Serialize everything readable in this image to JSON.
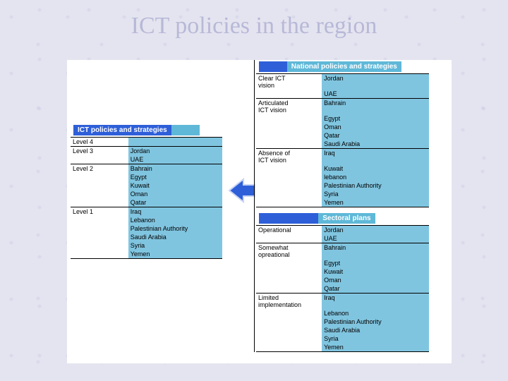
{
  "title": "ICT policies in the region",
  "colors": {
    "page_bg": "#e4e4f0",
    "content_bg": "#ffffff",
    "header_blue": "#2e5fd9",
    "header_cyan": "#5fb8d8",
    "col2_bg": "#80c5e0",
    "title_color": "#b8b8d8",
    "arrow_fill": "#2e5fd9",
    "arrow_stroke": "#8aa0e8"
  },
  "left": {
    "header": "ICT policies and strategies",
    "rows": [
      {
        "level": "Level 4",
        "items": [],
        "sep": true
      },
      {
        "level": "Level 3",
        "items": [
          "Jordan",
          "UAE"
        ],
        "sep": true
      },
      {
        "level": "Level 2",
        "items": [
          "Bahrain",
          "Egypt",
          "Kuwait",
          "Oman",
          "Qatar"
        ],
        "sep": true
      },
      {
        "level": "Level 1",
        "items": [
          "Iraq",
          "Lebanon",
          "Palestinian Authority",
          "Saudi Arabia",
          "Syria",
          "Yemen"
        ],
        "sep": true
      }
    ]
  },
  "right_top": {
    "header": "National policies and strategies",
    "rows": [
      {
        "level": "Clear ICT vision",
        "items": [
          "Jordan",
          "UAE"
        ],
        "sep": true
      },
      {
        "level": "Articulated ICT vision",
        "items": [
          "Bahrain",
          "Egypt",
          "Oman",
          "Qatar",
          "Saudi Arabia"
        ],
        "sep": true
      },
      {
        "level": "Absence of ICT vision",
        "items": [
          "Iraq",
          "Kuwait",
          "lebanon",
          "Palestinian Authority",
          "Syria",
          "Yemen"
        ],
        "sep": true
      }
    ]
  },
  "right_bottom": {
    "header": "Sectoral plans",
    "rows": [
      {
        "level": "Operational",
        "items": [
          "Jordan",
          "UAE"
        ],
        "sep": true
      },
      {
        "level": "Somewhat opreational",
        "items": [
          "Bahrain",
          "Egypt",
          "Kuwait",
          "Oman",
          "Qatar"
        ],
        "sep": true
      },
      {
        "level": "Limited implementation",
        "items": [
          "Iraq",
          "Lebanon",
          "Palestinian Authority",
          "Saudi Arabia",
          "Syria",
          "Yemen"
        ],
        "sep": true
      }
    ]
  }
}
